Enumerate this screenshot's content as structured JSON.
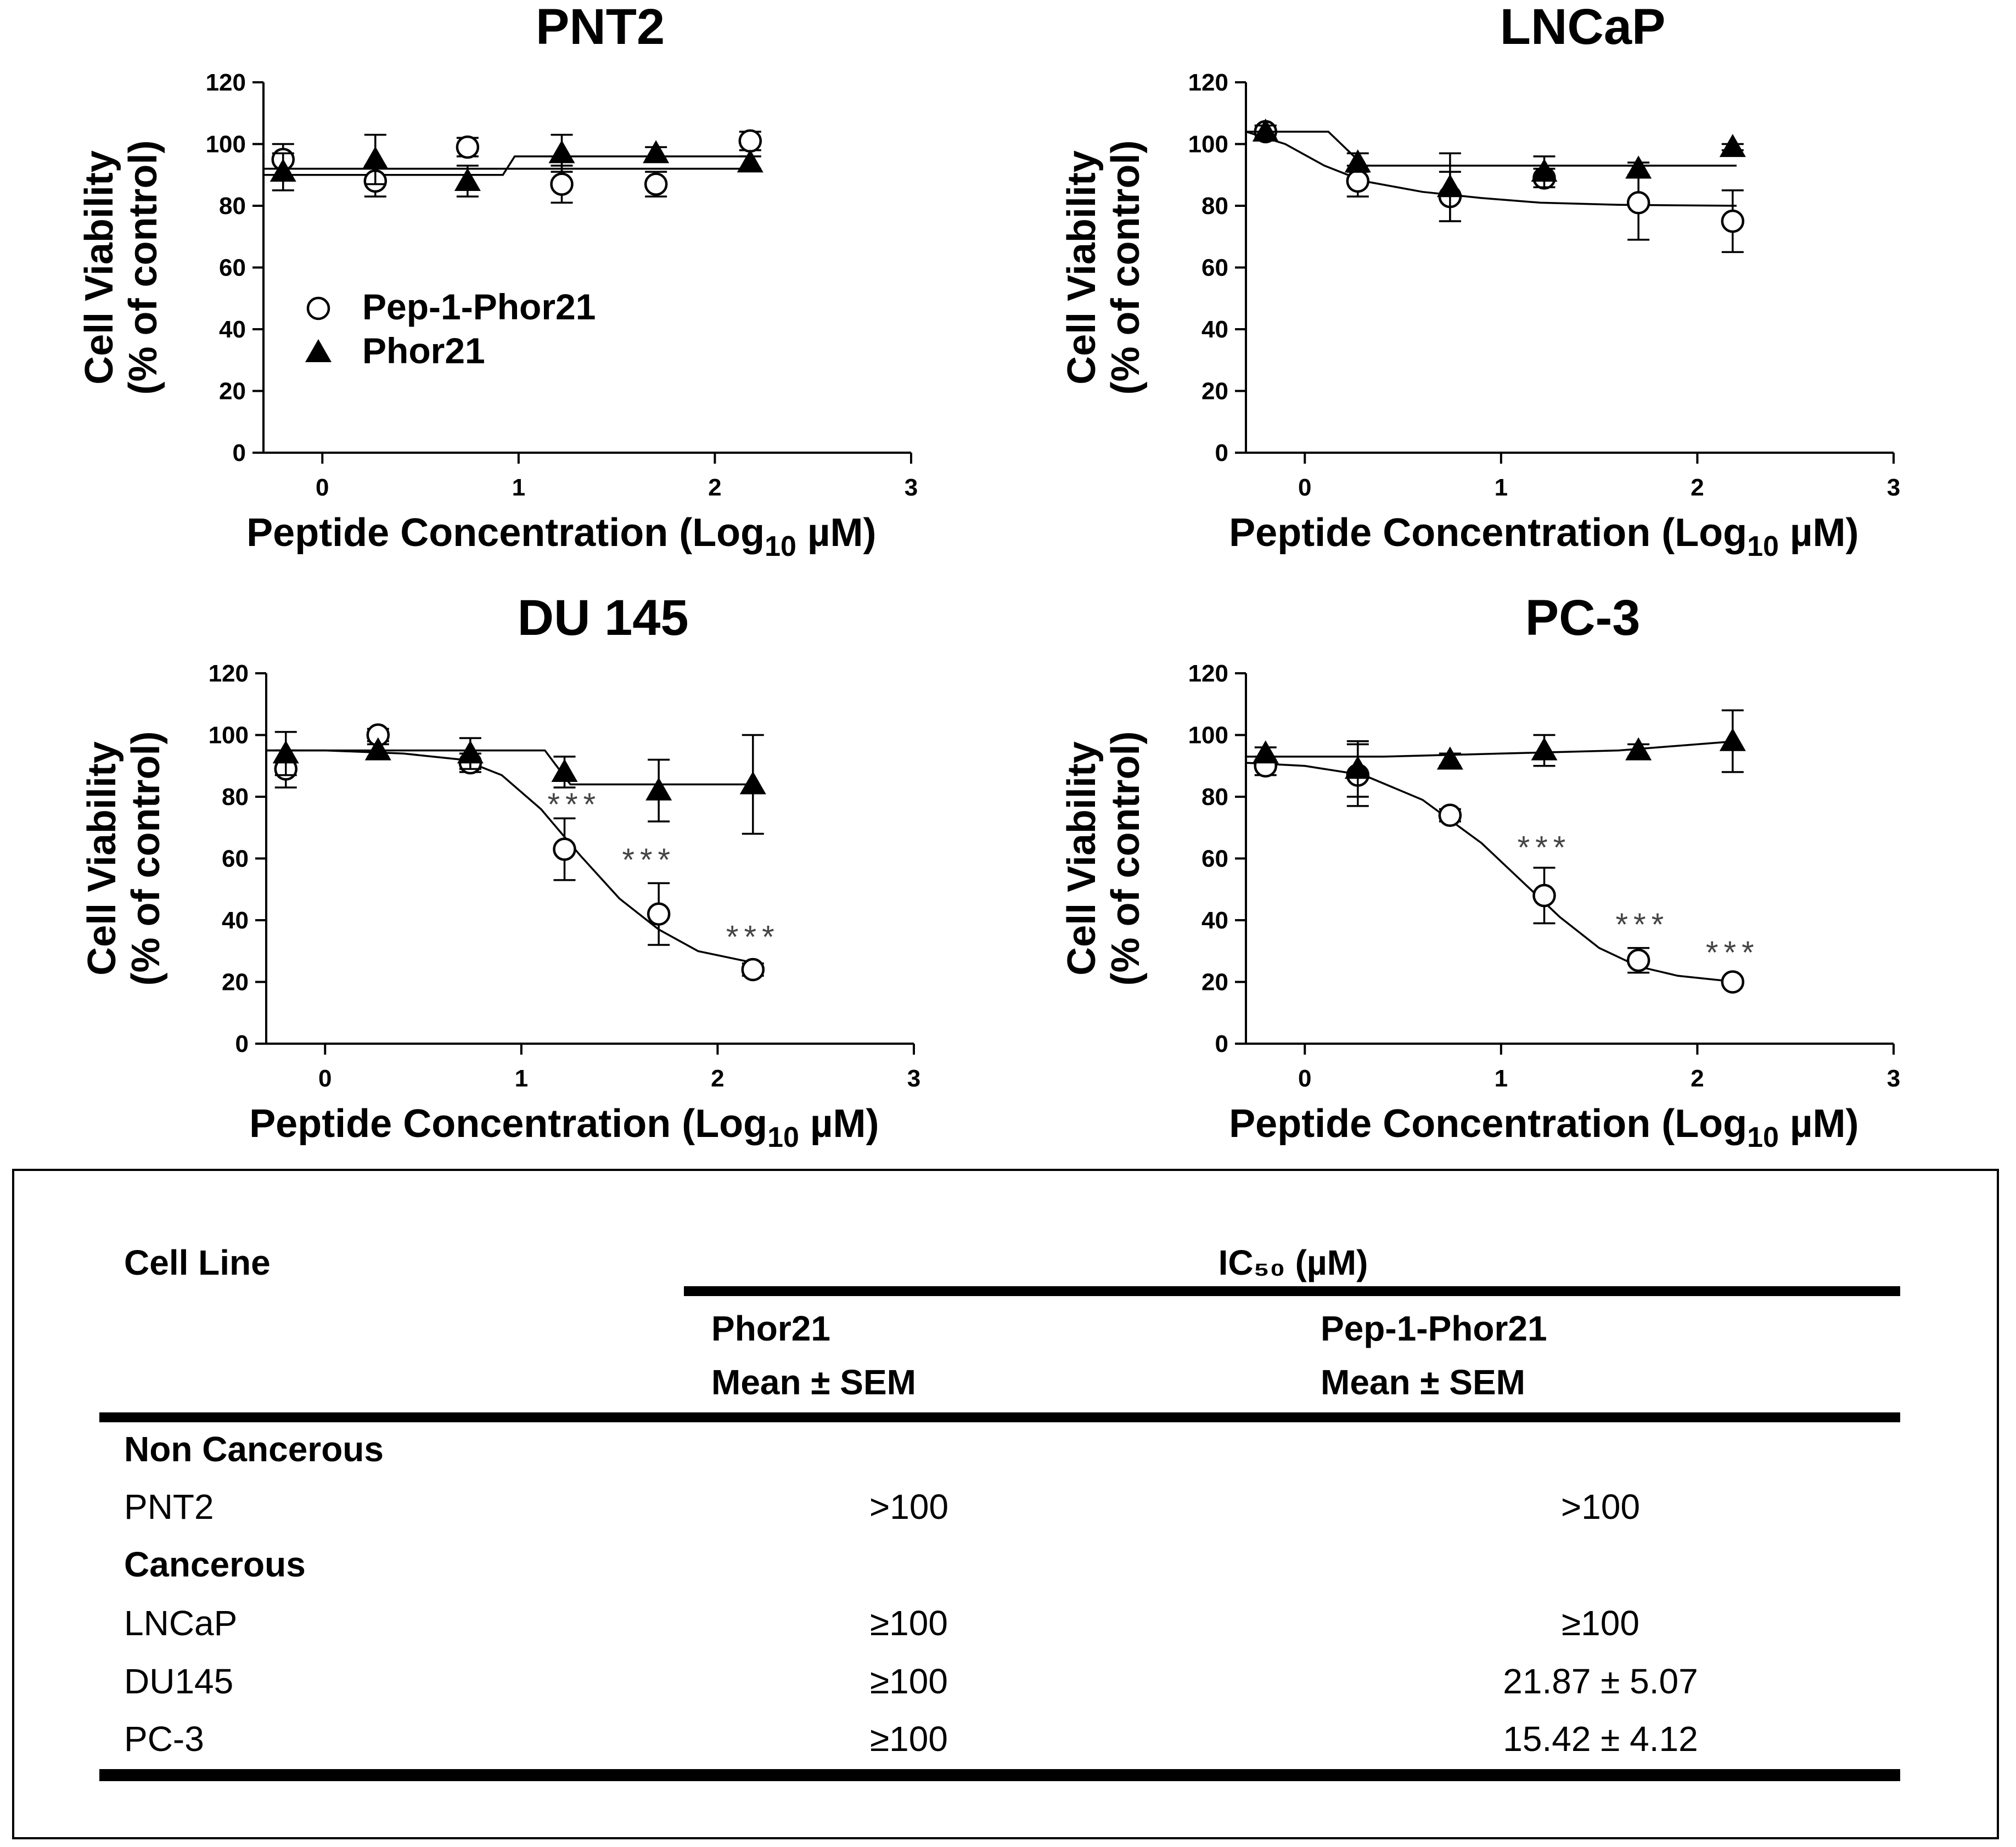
{
  "chart_data": [
    {
      "type": "scatter",
      "title": "PNT2",
      "xlabel": "Peptide Concentration (Log",
      "xlabel_sub": "10",
      "xlabel_end": " µM)",
      "ylabel_line1": "Cell Viability",
      "ylabel_line2": "(% of control)",
      "xlim": [
        -0.3,
        3
      ],
      "ylim": [
        0,
        120
      ],
      "xticks": [
        0,
        1,
        2,
        3
      ],
      "yticks": [
        0,
        20,
        40,
        60,
        80,
        100,
        120
      ],
      "legend": [
        "Pep-1-Phor21",
        "Phor21"
      ],
      "series": [
        {
          "name": "Pep-1-Phor21",
          "marker": "circle",
          "x": [
            -0.2,
            0.27,
            0.74,
            1.22,
            1.7,
            2.18
          ],
          "y": [
            95,
            88,
            99,
            87,
            87,
            101
          ],
          "err": [
            5,
            5,
            3,
            6,
            4,
            3
          ],
          "fit": [
            [
              -0.3,
              90
            ],
            [
              0.92,
              90
            ],
            [
              0.98,
              96
            ],
            [
              2.2,
              96
            ]
          ]
        },
        {
          "name": "Phor21",
          "marker": "triangle",
          "x": [
            -0.2,
            0.27,
            0.74,
            1.22,
            1.7,
            2.18
          ],
          "y": [
            91,
            95,
            88,
            97,
            97,
            94
          ],
          "err": [
            6,
            8,
            5,
            6,
            2,
            2
          ],
          "fit": [
            [
              -0.3,
              92
            ],
            [
              2.2,
              92
            ]
          ]
        }
      ],
      "annotations": []
    },
    {
      "type": "scatter",
      "title": "LNCaP",
      "xlabel": "Peptide Concentration (Log",
      "xlabel_sub": "10",
      "xlabel_end": " µM)",
      "ylabel_line1": "Cell Viability",
      "ylabel_line2": "(% of control)",
      "xlim": [
        -0.3,
        3
      ],
      "ylim": [
        0,
        120
      ],
      "xticks": [
        0,
        1,
        2,
        3
      ],
      "yticks": [
        0,
        20,
        40,
        60,
        80,
        100,
        120
      ],
      "legend": [],
      "series": [
        {
          "name": "Pep-1-Phor21",
          "marker": "circle",
          "x": [
            -0.2,
            0.27,
            0.74,
            1.22,
            1.7,
            2.18
          ],
          "y": [
            104,
            88,
            83,
            89,
            81,
            75
          ],
          "err": [
            2,
            5,
            8,
            3,
            12,
            10
          ],
          "fit": [
            [
              -0.3,
              104
            ],
            [
              -0.1,
              100
            ],
            [
              0.1,
              93
            ],
            [
              0.3,
              88
            ],
            [
              0.6,
              84.5
            ],
            [
              0.9,
              82.5
            ],
            [
              1.2,
              81
            ],
            [
              1.6,
              80.3
            ],
            [
              2.2,
              80
            ]
          ]
        },
        {
          "name": "Phor21",
          "marker": "triangle",
          "x": [
            -0.2,
            0.27,
            0.74,
            1.22,
            1.7,
            2.18
          ],
          "y": [
            104,
            94,
            86,
            91,
            92,
            99
          ],
          "err": [
            2,
            3,
            11,
            5,
            2,
            1
          ],
          "fit": [
            [
              -0.3,
              104
            ],
            [
              0.12,
              104
            ],
            [
              0.3,
              93
            ],
            [
              2.2,
              93
            ]
          ]
        }
      ],
      "annotations": []
    },
    {
      "type": "scatter",
      "title": "DU 145",
      "xlabel": "Peptide Concentration (Log",
      "xlabel_sub": "10",
      "xlabel_end": " µM)",
      "ylabel_line1": "Cell Viability",
      "ylabel_line2": "(% of control)",
      "xlim": [
        -0.3,
        3
      ],
      "ylim": [
        0,
        120
      ],
      "xticks": [
        0,
        1,
        2,
        3
      ],
      "yticks": [
        0,
        20,
        40,
        60,
        80,
        100,
        120
      ],
      "legend": [],
      "series": [
        {
          "name": "Pep-1-Phor21",
          "marker": "circle",
          "x": [
            -0.2,
            0.27,
            0.74,
            1.22,
            1.7,
            2.18
          ],
          "y": [
            89,
            100,
            91,
            63,
            42,
            24
          ],
          "err": [
            6,
            2,
            3,
            10,
            10,
            2
          ],
          "fit": [
            [
              -0.3,
              95
            ],
            [
              0.0,
              95
            ],
            [
              0.4,
              94
            ],
            [
              0.7,
              92
            ],
            [
              0.9,
              87
            ],
            [
              1.1,
              76
            ],
            [
              1.3,
              61
            ],
            [
              1.5,
              47
            ],
            [
              1.7,
              37
            ],
            [
              1.9,
              30
            ],
            [
              2.2,
              26
            ]
          ]
        },
        {
          "name": "Phor21",
          "marker": "triangle",
          "x": [
            -0.2,
            0.27,
            0.74,
            1.22,
            1.7,
            2.18
          ],
          "y": [
            94,
            95,
            94,
            88,
            82,
            84
          ],
          "err": [
            7,
            2,
            5,
            5,
            10,
            16
          ],
          "fit": [
            [
              -0.3,
              95
            ],
            [
              1.12,
              95
            ],
            [
              1.25,
              84
            ],
            [
              2.2,
              84
            ]
          ]
        }
      ],
      "annotations": [
        {
          "text": "***",
          "x": 1.27,
          "y": 74
        },
        {
          "text": "***",
          "x": 1.65,
          "y": 56
        },
        {
          "text": "***",
          "x": 2.18,
          "y": 31
        }
      ]
    },
    {
      "type": "scatter",
      "title": "PC-3",
      "xlabel": "Peptide Concentration (Log",
      "xlabel_sub": "10",
      "xlabel_end": " µM)",
      "ylabel_line1": "Cell Viability",
      "ylabel_line2": "(% of control)",
      "xlim": [
        -0.3,
        3
      ],
      "ylim": [
        0,
        120
      ],
      "xticks": [
        0,
        1,
        2,
        3
      ],
      "yticks": [
        0,
        20,
        40,
        60,
        80,
        100,
        120
      ],
      "legend": [],
      "series": [
        {
          "name": "Pep-1-Phor21",
          "marker": "circle",
          "x": [
            -0.2,
            0.27,
            0.74,
            1.22,
            1.7,
            2.18
          ],
          "y": [
            90,
            87,
            74,
            48,
            27,
            20
          ],
          "err": [
            3,
            10,
            2,
            9,
            4,
            1
          ],
          "fit": [
            [
              -0.3,
              91
            ],
            [
              0.0,
              90
            ],
            [
              0.3,
              87
            ],
            [
              0.6,
              79
            ],
            [
              0.9,
              65
            ],
            [
              1.1,
              53
            ],
            [
              1.3,
              41
            ],
            [
              1.5,
              31
            ],
            [
              1.7,
              25
            ],
            [
              1.9,
              22
            ],
            [
              2.2,
              20
            ]
          ]
        },
        {
          "name": "Phor21",
          "marker": "triangle",
          "x": [
            -0.2,
            0.27,
            0.74,
            1.22,
            1.7,
            2.18
          ],
          "y": [
            94,
            89,
            92,
            95,
            95,
            98
          ],
          "err": [
            2,
            9,
            2,
            5,
            2,
            10
          ],
          "fit": [
            [
              -0.3,
              93
            ],
            [
              0.4,
              93
            ],
            [
              1.0,
              94
            ],
            [
              1.6,
              95
            ],
            [
              2.2,
              98
            ]
          ]
        }
      ],
      "annotations": [
        {
          "text": "***",
          "x": 1.22,
          "y": 60
        },
        {
          "text": "***",
          "x": 1.72,
          "y": 35
        },
        {
          "text": "***",
          "x": 2.18,
          "y": 26
        }
      ]
    }
  ],
  "table": {
    "col_cell_line": "Cell Line",
    "ic50_header": "IC₅₀ (µM)",
    "col_phor21": "Phor21",
    "col_pep1": "Pep-1-Phor21",
    "mean_sem": "Mean ± SEM",
    "group_noncancer": "Non Cancerous",
    "group_cancer": "Cancerous",
    "rows": [
      {
        "cell": "PNT2",
        "phor21": ">100",
        "pep1": ">100"
      },
      {
        "cell": "LNCaP",
        "phor21": "≥100",
        "pep1": "≥100"
      },
      {
        "cell": "DU145",
        "phor21": "≥100",
        "pep1": "21.87 ± 5.07"
      },
      {
        "cell": "PC-3",
        "phor21": "≥100",
        "pep1": "15.42 ± 4.12"
      }
    ]
  },
  "colors": {
    "ink": "#000000",
    "annotation": "#444444",
    "background": "#ffffff"
  }
}
